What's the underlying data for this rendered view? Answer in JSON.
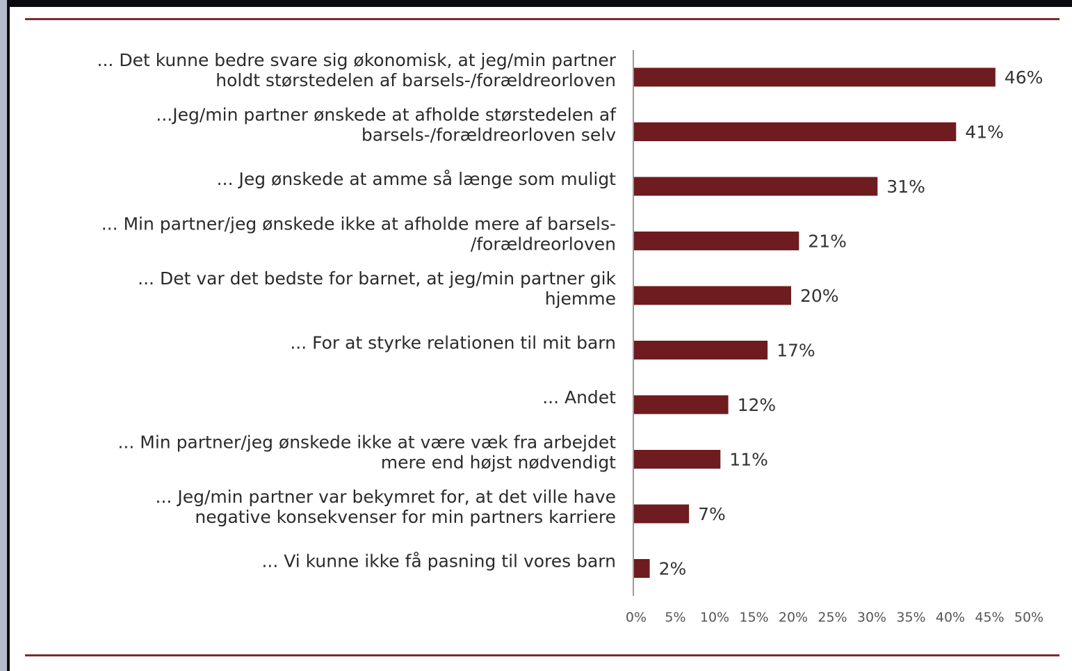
{
  "colors": {
    "bar": "#6e1c1f",
    "rule": "#7b2c2f",
    "axis": "#9a9a9a",
    "background": "#ffffff"
  },
  "chart_data": {
    "type": "bar",
    "orientation": "horizontal",
    "title": "",
    "xlabel": "",
    "ylabel": "",
    "xlim": [
      0,
      50
    ],
    "grid": false,
    "legend": "none",
    "categories": [
      [
        "... Det kunne bedre svare sig økonomisk, at jeg/min partner",
        "holdt størstedelen af barsels-/forældreorloven"
      ],
      [
        "...Jeg/min partner ønskede at afholde størstedelen af",
        "barsels-/forældreorloven selv"
      ],
      [
        "... Jeg ønskede at amme så længe som muligt"
      ],
      [
        "... Min partner/jeg ønskede ikke at afholde mere af barsels-",
        "/forældreorloven"
      ],
      [
        "... Det var det bedste for barnet, at jeg/min partner gik",
        "hjemme"
      ],
      [
        "... For at styrke relationen til mit barn"
      ],
      [
        "... Andet"
      ],
      [
        "... Min partner/jeg ønskede ikke at være væk fra arbejdet",
        "mere end højst nødvendigt"
      ],
      [
        "... Jeg/min partner var bekymret for, at det ville have",
        "negative konsekvenser for min partners karriere"
      ],
      [
        "... Vi kunne ikke få pasning til vores barn"
      ]
    ],
    "values": [
      46,
      41,
      31,
      21,
      20,
      17,
      12,
      11,
      7,
      2
    ],
    "value_labels": [
      "46%",
      "41%",
      "31%",
      "21%",
      "20%",
      "17%",
      "12%",
      "11%",
      "7%",
      "2%"
    ],
    "x_ticks": [
      "0%",
      "5%",
      "10%",
      "15%",
      "20%",
      "25%",
      "30%",
      "35%",
      "40%",
      "45%",
      "50%"
    ]
  }
}
